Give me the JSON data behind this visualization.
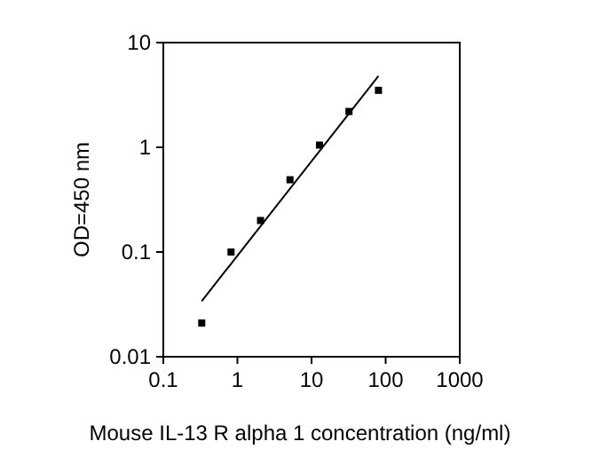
{
  "chart_data": {
    "type": "scatter",
    "xlabel": "Mouse IL-13 R alpha 1 concentration (ng/ml)",
    "ylabel": "OD=450 nm",
    "log": "xy",
    "xlim": [
      0.1,
      1000
    ],
    "xticks": [
      0.1,
      1,
      10,
      100,
      1000
    ],
    "ylim": [
      0.01,
      10
    ],
    "yticks": [
      0.01,
      0.1,
      1,
      10
    ],
    "grid": false,
    "marker": "square",
    "series": [
      {
        "color": "#000000",
        "x": [
          0.33,
          0.82,
          2.05,
          5.12,
          12.8,
          32,
          80
        ],
        "values": [
          0.021,
          0.1,
          0.2,
          0.49,
          1.05,
          2.2,
          3.5
        ]
      },
      {
        "type": "line",
        "color": "#000000",
        "marker": "none",
        "line_style": "solid",
        "x": [
          0.33,
          80
        ],
        "values": [
          0.034,
          4.8
        ]
      }
    ]
  }
}
